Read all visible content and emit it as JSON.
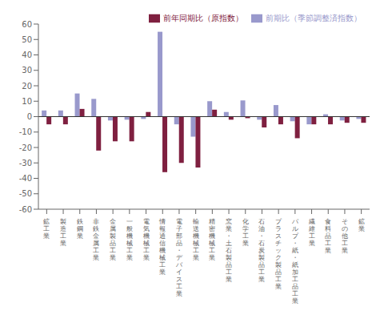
{
  "chart_data": {
    "type": "bar",
    "categories": [
      "鉱\n工\n業",
      "製\n造\n工\n業",
      "鉄\n鋼\n業",
      "非\n鉄\n金\n属\n工\n業",
      "金\n属\n製\n品\n工\n業",
      "一\n般\n機\n械\n工\n業",
      "電\n気\n機\n械\n工\n業",
      "情\n報\n通\n信\n機\n械\n工\n業",
      "電\n子\n部\n品\n・\nデ\nバ\nイ\nス\n工\n業",
      "輸\n送\n機\n械\n工\n業",
      "精\n密\n機\n械\n工\n業",
      "窯\n業\n・\n土\n石\n製\n品\n工\n業",
      "化\n学\n工\n業",
      "石\n油\n・\n石\n炭\n製\n品\n工\n業",
      "プ\nラ\nス\nチ\nッ\nク\n製\n品\n工\n業",
      "パ\nル\nプ\n・\n紙\n・\n紙\n加\n工\n品\n工\n業",
      "繊\n維\n工\n業",
      "食\n料\n品\n工\n業",
      "そ\nの\n他\n工\n業",
      "鉱\n業"
    ],
    "series": [
      {
        "name": "前期比（季節調整済指数）",
        "color": "#9999cc",
        "values": [
          4.0,
          4.0,
          15.0,
          11.5,
          -2.5,
          -2.0,
          -1.5,
          55.0,
          -5.0,
          -13.0,
          10.0,
          3.0,
          10.5,
          -2.0,
          7.5,
          -3.0,
          -5.0,
          1.5,
          -2.5,
          -1.5
        ]
      },
      {
        "name": "前年同期比（原指数）",
        "color": "#7f2040",
        "values": [
          -5.0,
          -5.0,
          5.0,
          -22.0,
          -16.0,
          -16.0,
          3.0,
          -36.0,
          -30.0,
          -33.0,
          4.5,
          -2.0,
          -1.0,
          -7.0,
          -5.0,
          -14.0,
          -5.0,
          -5.0,
          -4.0,
          -4.0
        ]
      }
    ],
    "ylim": [
      -60,
      60
    ],
    "yticks": [
      -60,
      -50,
      -40,
      -30,
      -20,
      -10,
      0,
      10,
      20,
      30,
      40,
      50,
      60
    ],
    "grid": false,
    "legend": "upper right"
  }
}
